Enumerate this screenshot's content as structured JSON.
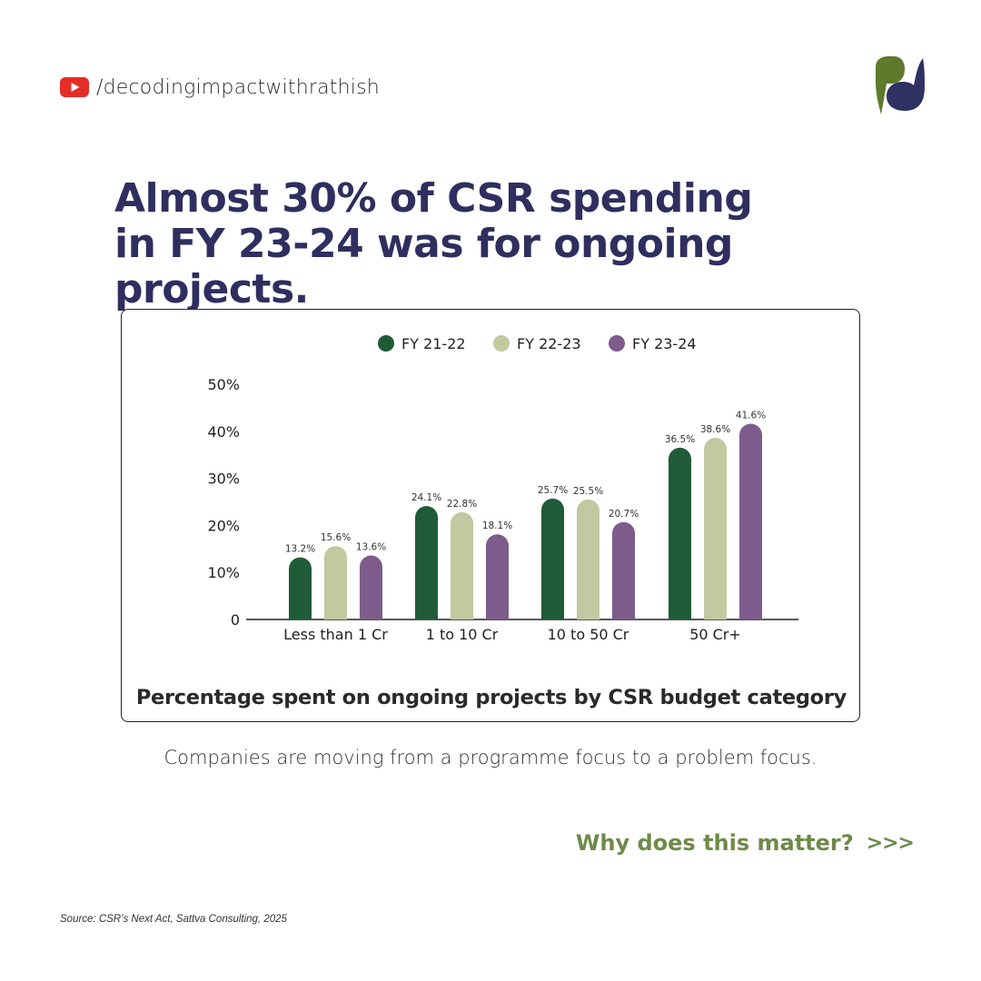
{
  "header": {
    "handle": "/decodingimpactwithrathish",
    "channel_icon": "youtube-icon",
    "logo_icon": "brand-logo-icon"
  },
  "headline": {
    "line1": "Almost 30% of CSR spending",
    "line2": "in FY 23-24 was for ongoing projects."
  },
  "chart_data": {
    "type": "bar",
    "title": "Percentage spent on ongoing projects by CSR budget category",
    "categories": [
      "Less than 1 Cr",
      "1 to 10 Cr",
      "10 to 50 Cr",
      "50 Cr+"
    ],
    "series": [
      {
        "name": "FY 21-22",
        "color": "#205b38",
        "values": [
          13.2,
          24.1,
          25.7,
          36.5
        ],
        "labels": [
          "13.2%",
          "24.1%",
          "25.7%",
          "36.5%"
        ]
      },
      {
        "name": "FY 22-23",
        "color": "#c2c8a0",
        "values": [
          15.6,
          22.8,
          25.5,
          38.6
        ],
        "labels": [
          "15.6%",
          "22.8%",
          "25.5%",
          "38.6%"
        ]
      },
      {
        "name": "FY 23-24",
        "color": "#7d5c8c",
        "values": [
          13.6,
          18.1,
          20.7,
          41.6
        ],
        "labels": [
          "13.6%",
          "18.1%",
          "20.7%",
          "41.6%"
        ]
      }
    ],
    "y_ticks": [
      {
        "value": 0,
        "label": "0"
      },
      {
        "value": 10,
        "label": "10%"
      },
      {
        "value": 20,
        "label": "20%"
      },
      {
        "value": 30,
        "label": "30%"
      },
      {
        "value": 40,
        "label": "40%"
      },
      {
        "value": 50,
        "label": "50%"
      }
    ],
    "ylim": [
      0,
      50
    ],
    "xlabel": "",
    "ylabel": "",
    "legend_position": "top-center",
    "grid": false
  },
  "subtitle": "Companies are moving from a programme focus to a problem focus.",
  "cta": {
    "label": "Why does this matter?",
    "arrows": ">>>"
  },
  "source": "Source: CSR’s Next Act, Sattva Consulting, 2025",
  "colors": {
    "headline": "#2e2f5f",
    "accent_green": "#6e8a48",
    "youtube_red": "#e52d27",
    "logo_navy": "#2f3163",
    "logo_green": "#5f7a2c"
  }
}
